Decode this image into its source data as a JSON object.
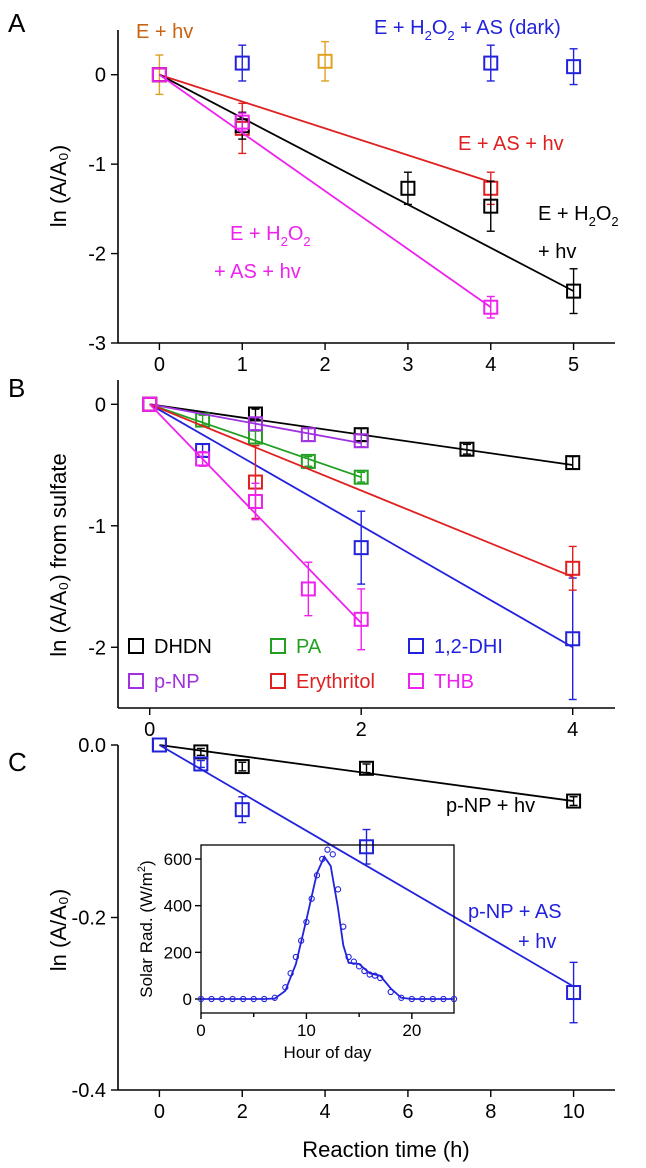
{
  "figure": {
    "xlabel_bottom": "Reaction time (h)"
  },
  "chart_data": [
    {
      "panel": "A",
      "type": "scatter",
      "ylabel": "ln (A/A₀)",
      "xlim": [
        -0.5,
        5.5
      ],
      "ylim": [
        -3,
        0.5
      ],
      "xticks": [
        0,
        1,
        2,
        3,
        4,
        5
      ],
      "yticks": [
        0,
        -1,
        -2,
        -3
      ],
      "series": [
        {
          "label": "E + hv",
          "color": "#e0a020",
          "points": [
            {
              "x": 0,
              "y": 0,
              "err": 0.22
            },
            {
              "x": 2,
              "y": 0.15,
              "err": 0.22
            }
          ]
        },
        {
          "label": "E + H₂O₂ + AS (dark)",
          "color": "#2222dd",
          "points": [
            {
              "x": 1,
              "y": 0.13,
              "err": 0.2
            },
            {
              "x": 4,
              "y": 0.13,
              "err": 0.2
            },
            {
              "x": 5,
              "y": 0.09,
              "err": 0.2
            }
          ]
        },
        {
          "label": "E + AS + hv",
          "color": "#e02020",
          "points": [
            {
              "x": 0,
              "y": 0,
              "err": 0
            },
            {
              "x": 1,
              "y": -0.6,
              "err": 0.28
            },
            {
              "x": 4,
              "y": -1.27,
              "err": 0.18
            }
          ],
          "fit": [
            [
              0,
              0
            ],
            [
              4,
              -1.2
            ]
          ]
        },
        {
          "label": "E + H₂O₂ + hv",
          "color": "#000000",
          "points": [
            {
              "x": 0,
              "y": 0,
              "err": 0
            },
            {
              "x": 1,
              "y": -0.57,
              "err": 0.15
            },
            {
              "x": 3,
              "y": -1.27,
              "err": 0.18
            },
            {
              "x": 4,
              "y": -1.47,
              "err": 0.28
            },
            {
              "x": 5,
              "y": -2.42,
              "err": 0.25
            }
          ],
          "fit": [
            [
              0,
              0
            ],
            [
              5,
              -2.42
            ]
          ]
        },
        {
          "label": "E + H₂O₂ + AS + hv",
          "color": "#ee22ee",
          "points": [
            {
              "x": 0,
              "y": 0,
              "err": 0
            },
            {
              "x": 1,
              "y": -0.53,
              "err": 0.1
            },
            {
              "x": 4,
              "y": -2.6,
              "err": 0.12
            }
          ],
          "fit": [
            [
              0,
              0
            ],
            [
              4,
              -2.6
            ]
          ]
        }
      ],
      "annotations": [
        {
          "color": "#c86410",
          "parts": [
            {
              "t": "E + hv"
            }
          ]
        },
        {
          "color": "#2222dd",
          "parts": [
            {
              "t": "E + H"
            },
            {
              "t": "2",
              "sub": true
            },
            {
              "t": "O"
            },
            {
              "t": "2",
              "sub": true
            },
            {
              "t": " + AS (dark)"
            }
          ]
        },
        {
          "color": "#e02020",
          "parts": [
            {
              "t": "E + AS + hv"
            }
          ]
        },
        {
          "color": "#000000",
          "parts": [
            {
              "t": "E + H"
            },
            {
              "t": "2",
              "sub": true
            },
            {
              "t": "O"
            },
            {
              "t": "2",
              "sub": true
            }
          ]
        },
        {
          "color": "#000000",
          "parts": [
            {
              "t": "+ hv"
            }
          ]
        },
        {
          "color": "#ee22ee",
          "parts": [
            {
              "t": "E + H"
            },
            {
              "t": "2",
              "sub": true
            },
            {
              "t": "O"
            },
            {
              "t": "2",
              "sub": true
            }
          ]
        },
        {
          "color": "#ee22ee",
          "parts": [
            {
              "t": "+ AS + hv"
            }
          ]
        }
      ]
    },
    {
      "panel": "B",
      "type": "scatter",
      "ylabel": "ln (A/A₀) from sulfate",
      "xlim": [
        -0.3,
        4.4
      ],
      "ylim": [
        -2.5,
        0.2
      ],
      "xticks": [
        0,
        2,
        4
      ],
      "yticks": [
        0,
        -1,
        -2
      ],
      "legend": "bottom-left",
      "series": [
        {
          "name": "DHDN",
          "color": "#000000",
          "points": [
            {
              "x": 0,
              "y": 0,
              "err": 0
            },
            {
              "x": 1,
              "y": -0.08,
              "err": 0.04
            },
            {
              "x": 2,
              "y": -0.25,
              "err": 0.05
            },
            {
              "x": 3,
              "y": -0.37,
              "err": 0.04
            },
            {
              "x": 4,
              "y": -0.48,
              "err": 0.05
            }
          ],
          "fit": [
            [
              0,
              0
            ],
            [
              4,
              -0.5
            ]
          ]
        },
        {
          "name": "PA",
          "color": "#22a022",
          "points": [
            {
              "x": 0,
              "y": 0,
              "err": 0
            },
            {
              "x": 0.5,
              "y": -0.13,
              "err": 0.04
            },
            {
              "x": 1,
              "y": -0.27,
              "err": 0.05
            },
            {
              "x": 1.5,
              "y": -0.47,
              "err": 0.04
            },
            {
              "x": 2,
              "y": -0.6,
              "err": 0.04
            }
          ],
          "fit": [
            [
              0,
              0
            ],
            [
              2,
              -0.6
            ]
          ]
        },
        {
          "name": "1,2-DHI",
          "color": "#2222dd",
          "points": [
            {
              "x": 0,
              "y": 0,
              "err": 0
            },
            {
              "x": 0.5,
              "y": -0.38,
              "err": 0.05
            },
            {
              "x": 2,
              "y": -1.18,
              "err": 0.3
            },
            {
              "x": 4,
              "y": -1.93,
              "err": 0.5
            }
          ],
          "fit": [
            [
              0,
              0
            ],
            [
              4,
              -2.0
            ]
          ]
        },
        {
          "name": "p-NP",
          "color": "#a030e0",
          "points": [
            {
              "x": 0,
              "y": 0,
              "err": 0
            },
            {
              "x": 1,
              "y": -0.16,
              "err": 0.05
            },
            {
              "x": 1.5,
              "y": -0.25,
              "err": 0.05
            },
            {
              "x": 2,
              "y": -0.3,
              "err": 0.05
            }
          ],
          "fit": [
            [
              0,
              0
            ],
            [
              2,
              -0.32
            ]
          ]
        },
        {
          "name": "Erythritol",
          "color": "#e02020",
          "points": [
            {
              "x": 0,
              "y": 0,
              "err": 0
            },
            {
              "x": 1,
              "y": -0.64,
              "err": 0.3
            },
            {
              "x": 4,
              "y": -1.35,
              "err": 0.18
            }
          ],
          "fit": [
            [
              0,
              0
            ],
            [
              4,
              -1.42
            ]
          ]
        },
        {
          "name": "THB",
          "color": "#ee22ee",
          "points": [
            {
              "x": 0,
              "y": 0,
              "err": 0
            },
            {
              "x": 0.5,
              "y": -0.45,
              "err": 0.06
            },
            {
              "x": 1,
              "y": -0.8,
              "err": 0.15
            },
            {
              "x": 1.5,
              "y": -1.52,
              "err": 0.22
            },
            {
              "x": 2,
              "y": -1.77,
              "err": 0.25
            }
          ],
          "fit": [
            [
              0,
              0
            ],
            [
              2,
              -1.8
            ]
          ]
        }
      ]
    },
    {
      "panel": "C",
      "type": "scatter",
      "ylabel": "ln (A/A₀)",
      "xlim": [
        -1,
        11
      ],
      "ylim": [
        -0.4,
        0
      ],
      "xticks": [
        0,
        2,
        4,
        6,
        8,
        10
      ],
      "yticks": [
        0,
        -0.2,
        -0.4
      ],
      "ytick_labels": [
        "0.0",
        "-0.2",
        "-0.4"
      ],
      "series": [
        {
          "label": "p-NP + hv",
          "color": "#000000",
          "points": [
            {
              "x": 0,
              "y": 0,
              "err": 0
            },
            {
              "x": 1,
              "y": -0.008,
              "err": 0.004
            },
            {
              "x": 2,
              "y": -0.025,
              "err": 0.005
            },
            {
              "x": 5,
              "y": -0.027,
              "err": 0.005
            },
            {
              "x": 10,
              "y": -0.065,
              "err": 0.005
            }
          ],
          "fit": [
            [
              0,
              0
            ],
            [
              10,
              -0.065
            ]
          ]
        },
        {
          "label": "p-NP + AS + hv",
          "color": "#2222dd",
          "points": [
            {
              "x": 0,
              "y": 0,
              "err": 0
            },
            {
              "x": 1,
              "y": -0.022,
              "err": 0.004
            },
            {
              "x": 2,
              "y": -0.075,
              "err": 0.015
            },
            {
              "x": 5,
              "y": -0.118,
              "err": 0.02
            },
            {
              "x": 10,
              "y": -0.287,
              "err": 0.035
            }
          ],
          "fit": [
            [
              0,
              0
            ],
            [
              10,
              -0.28
            ]
          ]
        }
      ],
      "annotations": [
        {
          "color": "#000000",
          "parts": [
            {
              "t": "p-NP + hv"
            }
          ]
        },
        {
          "color": "#2222dd",
          "parts": [
            {
              "t": "p-NP + AS"
            }
          ]
        },
        {
          "color": "#2222dd",
          "parts": [
            {
              "t": "+ hv"
            }
          ]
        }
      ],
      "inset": {
        "type": "scatter",
        "xlabel": "Hour of day",
        "ylabel_parts": [
          {
            "t": "Solar Rad. (W/m"
          },
          {
            "t": "2",
            "sup": true
          },
          {
            "t": ")"
          }
        ],
        "xlim": [
          0,
          24
        ],
        "ylim": [
          -60,
          660
        ],
        "xticks": [
          0,
          10,
          20
        ],
        "xticks_minor": [
          5,
          15
        ],
        "yticks": [
          0,
          200,
          400,
          600
        ],
        "color": "#2222dd",
        "points": [
          [
            0,
            0
          ],
          [
            1,
            0
          ],
          [
            2,
            0
          ],
          [
            3,
            0
          ],
          [
            4,
            0
          ],
          [
            5,
            0
          ],
          [
            6,
            0
          ],
          [
            7,
            5
          ],
          [
            8,
            50
          ],
          [
            8.5,
            110
          ],
          [
            9,
            180
          ],
          [
            9.5,
            250
          ],
          [
            10,
            330
          ],
          [
            10.5,
            430
          ],
          [
            11,
            530
          ],
          [
            11.5,
            600
          ],
          [
            12,
            640
          ],
          [
            12.5,
            620
          ],
          [
            13,
            470
          ],
          [
            13.5,
            310
          ],
          [
            14,
            180
          ],
          [
            14.5,
            160
          ],
          [
            15,
            140
          ],
          [
            15.5,
            120
          ],
          [
            16,
            105
          ],
          [
            16.5,
            100
          ],
          [
            17,
            90
          ],
          [
            18,
            30
          ],
          [
            19,
            5
          ],
          [
            20,
            0
          ],
          [
            21,
            0
          ],
          [
            22,
            0
          ],
          [
            23,
            0
          ],
          [
            24,
            0
          ]
        ],
        "curve": [
          [
            0,
            0
          ],
          [
            6,
            0
          ],
          [
            7,
            2
          ],
          [
            8,
            35
          ],
          [
            9,
            150
          ],
          [
            10,
            340
          ],
          [
            11,
            540
          ],
          [
            11.7,
            610
          ],
          [
            12.3,
            570
          ],
          [
            13,
            390
          ],
          [
            13.5,
            230
          ],
          [
            14,
            155
          ],
          [
            15,
            150
          ],
          [
            16,
            110
          ],
          [
            17,
            100
          ],
          [
            18,
            45
          ],
          [
            19,
            5
          ],
          [
            20,
            0
          ],
          [
            24,
            0
          ]
        ]
      }
    }
  ]
}
